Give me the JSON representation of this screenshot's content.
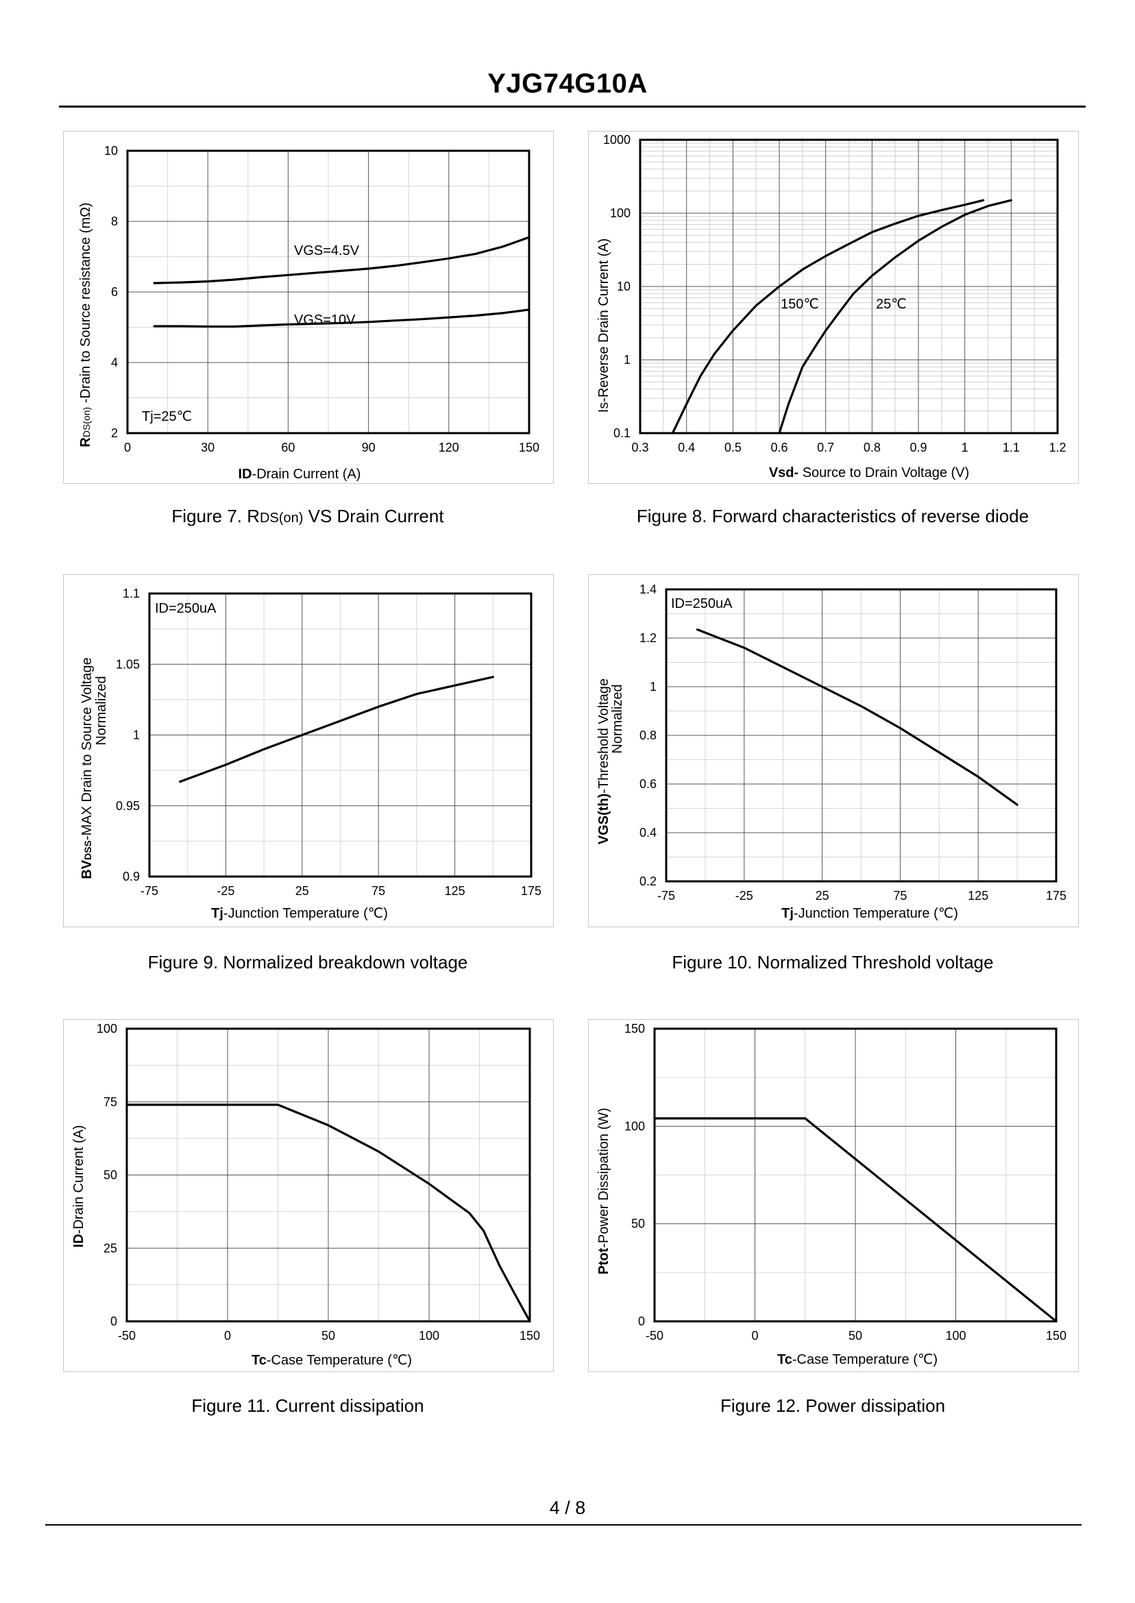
{
  "header": {
    "title": "YJG74G10A"
  },
  "footer": {
    "page": "4 / 8"
  },
  "chart_data": [
    {
      "id": "fig7",
      "type": "line",
      "caption_prefix": "Figure 7.  R",
      "caption_sub": "DS(on)",
      "caption_suffix": " VS Drain Current",
      "xlabel_bold": "ID",
      "xlabel_rest": "-Drain Current (A)",
      "ylabel_bold": "R",
      "ylabel_sub": "DS(on)",
      "ylabel_rest": " -Drain to Source resistance (mΩ)",
      "xlim": [
        0,
        150
      ],
      "ylim": [
        2,
        10
      ],
      "xticks": [
        "0",
        "30",
        "60",
        "90",
        "120",
        "150"
      ],
      "yticks": [
        "2",
        "4",
        "6",
        "8",
        "10"
      ],
      "xtick_values": [
        0,
        30,
        60,
        90,
        120,
        150
      ],
      "ytick_values": [
        2,
        4,
        6,
        8,
        10
      ],
      "series": [
        {
          "name": "VGS=4.5V",
          "x": [
            10,
            20,
            30,
            40,
            50,
            60,
            70,
            80,
            90,
            100,
            110,
            120,
            130,
            140,
            150
          ],
          "y": [
            6.25,
            6.27,
            6.3,
            6.35,
            6.42,
            6.48,
            6.54,
            6.6,
            6.66,
            6.74,
            6.84,
            6.95,
            7.08,
            7.28,
            7.55
          ]
        },
        {
          "name": "VGS=10V",
          "x": [
            10,
            20,
            30,
            40,
            50,
            60,
            70,
            80,
            90,
            100,
            110,
            120,
            130,
            140,
            150
          ],
          "y": [
            5.03,
            5.03,
            5.02,
            5.02,
            5.05,
            5.08,
            5.1,
            5.12,
            5.15,
            5.19,
            5.23,
            5.28,
            5.33,
            5.4,
            5.5
          ]
        }
      ],
      "annotations": [
        "VGS=4.5V",
        "VGS=10V",
        "Tj=25℃"
      ]
    },
    {
      "id": "fig8",
      "type": "line",
      "yscale": "log",
      "caption": "Figure 8.  Forward characteristics of reverse diode",
      "xlabel_bold": "Vsd-",
      "xlabel_rest": " Source to Drain Voltage (V)",
      "ylabel": "Is-Reverse  Drain Current (A)",
      "xlim": [
        0.3,
        1.2
      ],
      "ylim": [
        0.1,
        1000
      ],
      "xticks": [
        "0.3",
        "0.4",
        "0.5",
        "0.6",
        "0.7",
        "0.8",
        "0.9",
        "1",
        "1.1",
        "1.2"
      ],
      "yticks": [
        "0.1",
        "1",
        "10",
        "100",
        "1000"
      ],
      "xtick_values": [
        0.3,
        0.4,
        0.5,
        0.6,
        0.7,
        0.8,
        0.9,
        1.0,
        1.1,
        1.2
      ],
      "ytick_values": [
        0.1,
        1,
        10,
        100,
        1000
      ],
      "series": [
        {
          "name": "150℃",
          "x": [
            0.37,
            0.4,
            0.43,
            0.46,
            0.5,
            0.55,
            0.6,
            0.65,
            0.7,
            0.75,
            0.8,
            0.85,
            0.9,
            0.95,
            1.0,
            1.04
          ],
          "y": [
            0.1,
            0.25,
            0.6,
            1.2,
            2.5,
            5.5,
            10,
            17,
            26,
            38,
            55,
            72,
            92,
            110,
            130,
            150
          ]
        },
        {
          "name": "25℃",
          "x": [
            0.6,
            0.62,
            0.65,
            0.68,
            0.7,
            0.73,
            0.76,
            0.8,
            0.85,
            0.9,
            0.95,
            1.0,
            1.05,
            1.1
          ],
          "y": [
            0.1,
            0.25,
            0.8,
            1.6,
            2.5,
            4.5,
            8,
            14,
            25,
            42,
            65,
            95,
            125,
            150
          ]
        }
      ],
      "annotations": [
        "150℃",
        "25℃"
      ]
    },
    {
      "id": "fig9",
      "type": "line",
      "caption": "Figure 9.  Normalized breakdown voltage",
      "xlabel_bold": "Tj",
      "xlabel_rest": "-Junction  Temperature (℃)",
      "ylabel_bold": "BV",
      "ylabel_sub": "DSS",
      "ylabel_rest": "-MAX Drain to Source Voltage",
      "ylabel_line2": "Normalized",
      "xlim": [
        -75,
        175
      ],
      "ylim": [
        0.9,
        1.1
      ],
      "xticks": [
        "-75",
        "-25",
        "25",
        "75",
        "125",
        "175"
      ],
      "yticks": [
        "0.9",
        "0.95",
        "1",
        "1.05",
        "1.1"
      ],
      "xtick_values": [
        -75,
        -25,
        25,
        75,
        125,
        175
      ],
      "ytick_values": [
        0.9,
        0.95,
        1.0,
        1.05,
        1.1
      ],
      "series": [
        {
          "name": "BVDSS",
          "x": [
            -55,
            -25,
            0,
            25,
            50,
            75,
            100,
            125,
            150
          ],
          "y": [
            0.967,
            0.979,
            0.99,
            1.0,
            1.01,
            1.02,
            1.029,
            1.035,
            1.041
          ]
        }
      ],
      "annotations": [
        "ID=250uA"
      ]
    },
    {
      "id": "fig10",
      "type": "line",
      "caption": "Figure 10.  Normalized Threshold voltage",
      "xlabel_bold": "Tj",
      "xlabel_rest": "-Junction  Temperature (℃)",
      "ylabel_bold": "VGS(th)",
      "ylabel_rest": "-Threshold  Voltage",
      "ylabel_line2": "Normalized",
      "xlim": [
        -75,
        175
      ],
      "ylim": [
        0.2,
        1.4
      ],
      "xticks": [
        "-75",
        "-25",
        "25",
        "75",
        "125",
        "175"
      ],
      "yticks": [
        "0.2",
        "0.4",
        "0.6",
        "0.8",
        "1",
        "1.2",
        "1.4"
      ],
      "xtick_values": [
        -75,
        -25,
        25,
        75,
        125,
        175
      ],
      "ytick_values": [
        0.2,
        0.4,
        0.6,
        0.8,
        1.0,
        1.2,
        1.4
      ],
      "series": [
        {
          "name": "VGS(th)",
          "x": [
            -55,
            -25,
            0,
            25,
            50,
            75,
            100,
            125,
            150
          ],
          "y": [
            1.235,
            1.16,
            1.08,
            1.0,
            0.92,
            0.83,
            0.73,
            0.63,
            0.515
          ]
        }
      ],
      "annotations": [
        "ID=250uA"
      ]
    },
    {
      "id": "fig11",
      "type": "line",
      "caption": "Figure 11.  Current dissipation",
      "xlabel_bold": "Tc",
      "xlabel_rest": "-Case Temperature (℃)",
      "ylabel_bold": "ID",
      "ylabel_rest": "-Drain Current (A)",
      "xlim": [
        -50,
        150
      ],
      "ylim": [
        0,
        100
      ],
      "xticks": [
        "-50",
        "0",
        "50",
        "100",
        "150"
      ],
      "yticks": [
        "0",
        "25",
        "50",
        "75",
        "100"
      ],
      "xtick_values": [
        -50,
        0,
        50,
        100,
        150
      ],
      "ytick_values": [
        0,
        25,
        50,
        75,
        100
      ],
      "series": [
        {
          "name": "ID",
          "x": [
            -50,
            25,
            50,
            75,
            100,
            110,
            120,
            127,
            135,
            142,
            150
          ],
          "y": [
            74,
            74,
            67,
            58,
            47,
            42,
            37,
            31,
            19,
            10,
            0
          ]
        }
      ],
      "annotations": []
    },
    {
      "id": "fig12",
      "type": "line",
      "caption": "Figure 12.  Power dissipation",
      "xlabel_bold": "Tc",
      "xlabel_rest": "-Case Temperature (℃)",
      "ylabel_bold": "Ptot",
      "ylabel_rest": "-Power Dissipation (W)",
      "xlim": [
        -50,
        150
      ],
      "ylim": [
        0,
        150
      ],
      "xticks": [
        "-50",
        "0",
        "50",
        "100",
        "150"
      ],
      "yticks": [
        "0",
        "50",
        "100",
        "150"
      ],
      "xtick_values": [
        -50,
        0,
        50,
        100,
        150
      ],
      "ytick_values": [
        0,
        50,
        100,
        150
      ],
      "series": [
        {
          "name": "Ptot",
          "x": [
            -50,
            25,
            150
          ],
          "y": [
            104,
            104,
            0
          ]
        }
      ],
      "annotations": []
    }
  ]
}
